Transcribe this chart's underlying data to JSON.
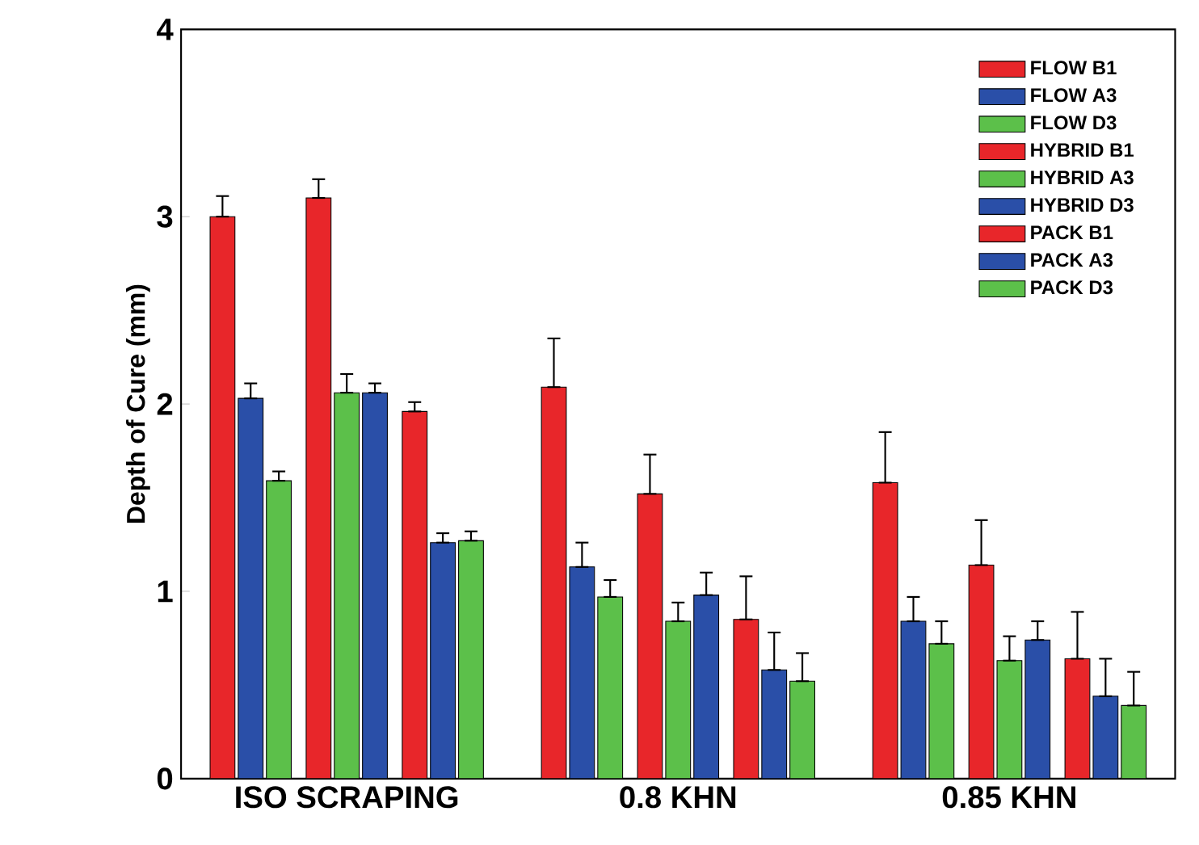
{
  "chart_data": {
    "type": "bar",
    "ylabel": "Depth of Cure (mm)",
    "categories": [
      "ISO SCRAPING",
      "0.8 KHN",
      "0.85 KHN"
    ],
    "ylim": [
      0,
      4
    ],
    "yticks": [
      0,
      1,
      2,
      3,
      4
    ],
    "grid": false,
    "legend": "top right",
    "series": [
      {
        "name": "FLOW  B1",
        "color": "#e8262a",
        "values": [
          3.0,
          2.09,
          1.58
        ],
        "errors": [
          [
            3.0,
            3.11
          ],
          [
            2.09,
            2.35
          ],
          [
            1.58,
            1.85
          ]
        ]
      },
      {
        "name": "FLOW  A3",
        "color": "#2a4fa8",
        "values": [
          2.03,
          1.13,
          0.84
        ],
        "errors": [
          [
            2.03,
            2.11
          ],
          [
            1.13,
            1.26
          ],
          [
            0.84,
            0.97
          ]
        ]
      },
      {
        "name": "FLOW  D3",
        "color": "#5cc04a",
        "values": [
          1.59,
          0.97,
          0.72
        ],
        "errors": [
          [
            1.59,
            1.64
          ],
          [
            0.97,
            1.06
          ],
          [
            0.72,
            0.84
          ]
        ]
      },
      {
        "name": "HYBRID B1",
        "color": "#e8262a",
        "values": [
          3.1,
          1.52,
          1.14
        ],
        "errors": [
          [
            3.1,
            3.2
          ],
          [
            1.52,
            1.73
          ],
          [
            1.14,
            1.38
          ]
        ]
      },
      {
        "name": "HYBRID A3",
        "color": "#5cc04a",
        "values": [
          2.06,
          0.84,
          0.63
        ],
        "errors": [
          [
            2.06,
            2.16
          ],
          [
            0.84,
            0.94
          ],
          [
            0.63,
            0.76
          ]
        ]
      },
      {
        "name": "HYBRID D3",
        "color": "#2a4fa8",
        "values": [
          2.06,
          0.98,
          0.74
        ],
        "errors": [
          [
            2.06,
            2.11
          ],
          [
            0.98,
            1.1
          ],
          [
            0.74,
            0.84
          ]
        ]
      },
      {
        "name": "PACK  B1",
        "color": "#e8262a",
        "values": [
          1.96,
          0.85,
          0.64
        ],
        "errors": [
          [
            1.96,
            2.01
          ],
          [
            0.85,
            1.08
          ],
          [
            0.64,
            0.89
          ]
        ]
      },
      {
        "name": "PACK  A3",
        "color": "#2a4fa8",
        "values": [
          1.26,
          0.58,
          0.44
        ],
        "errors": [
          [
            1.26,
            1.31
          ],
          [
            0.58,
            0.78
          ],
          [
            0.44,
            0.64
          ]
        ]
      },
      {
        "name": "PACK  D3",
        "color": "#5cc04a",
        "values": [
          1.27,
          0.52,
          0.39
        ],
        "errors": [
          [
            1.27,
            1.32
          ],
          [
            0.52,
            0.67
          ],
          [
            0.39,
            0.57
          ]
        ]
      }
    ]
  }
}
